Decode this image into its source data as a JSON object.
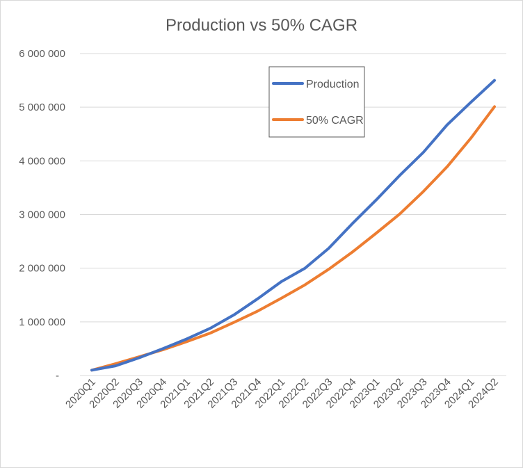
{
  "chart_data": {
    "type": "line",
    "title": "Production vs 50% CAGR",
    "xlabel": "",
    "ylabel": "",
    "categories": [
      "2020Q1",
      "2020Q2",
      "2020Q3",
      "2020Q4",
      "2021Q1",
      "2021Q2",
      "2021Q3",
      "2021Q4",
      "2022Q1",
      "2022Q2",
      "2022Q3",
      "2022Q4",
      "2023Q1",
      "2023Q2",
      "2023Q3",
      "2023Q4",
      "2024Q1",
      "2024Q2"
    ],
    "ylim": [
      0,
      6000000
    ],
    "yticks": [
      0,
      1000000,
      2000000,
      3000000,
      4000000,
      5000000,
      6000000
    ],
    "ytick_labels": [
      "-",
      "1 000 000",
      "2 000 000",
      "3 000 000",
      "4 000 000",
      "5 000 000",
      "6 000 000"
    ],
    "grid": true,
    "legend_position": "top-right",
    "series": [
      {
        "name": "Production",
        "color": "#4472C4",
        "values": [
          100000,
          180000,
          330000,
          500000,
          680000,
          880000,
          1130000,
          1430000,
          1750000,
          2000000,
          2370000,
          2830000,
          3270000,
          3730000,
          4160000,
          4670000,
          5090000,
          5500000
        ]
      },
      {
        "name": "50% CAGR",
        "color": "#ED7D31",
        "values": [
          100000,
          220000,
          350000,
          480000,
          630000,
          790000,
          990000,
          1200000,
          1440000,
          1690000,
          1980000,
          2300000,
          2650000,
          3010000,
          3430000,
          3890000,
          4420000,
          5010000
        ]
      }
    ]
  }
}
